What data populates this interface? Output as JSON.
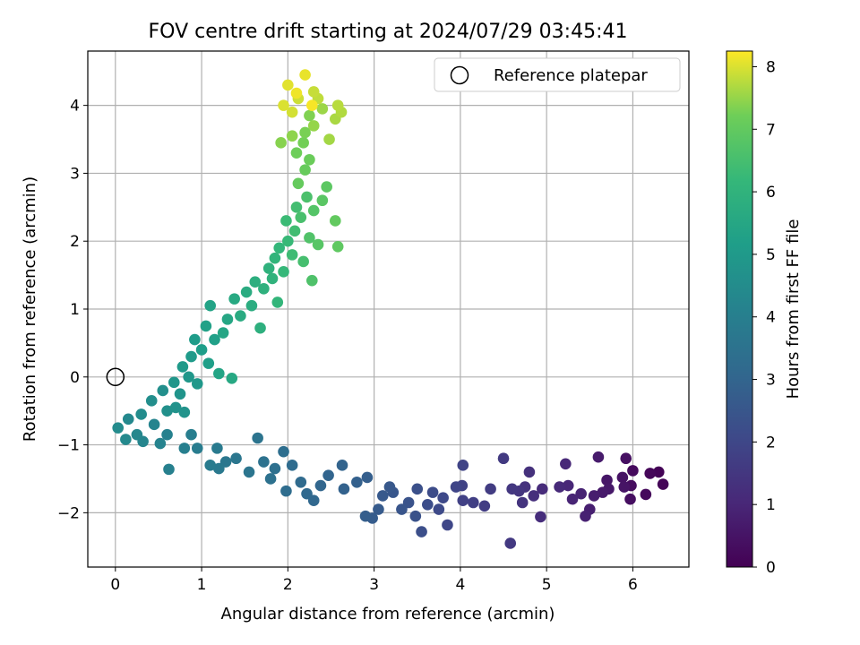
{
  "chart_data": {
    "type": "scatter",
    "title": "FOV centre drift starting at 2024/07/29 03:45:41",
    "xlabel": "Angular distance from reference (arcmin)",
    "ylabel": "Rotation from reference (arcmin)",
    "xlim": [
      -0.32,
      6.65
    ],
    "ylim": [
      -2.8,
      4.8
    ],
    "x_ticks": [
      0,
      1,
      2,
      3,
      4,
      5,
      6
    ],
    "y_ticks": [
      -2,
      -1,
      0,
      1,
      2,
      3,
      4
    ],
    "grid": true,
    "legend": {
      "placement": "top-right",
      "entries": [
        "Reference platepar"
      ]
    },
    "reference_point": {
      "name": "Reference platepar",
      "x": 0,
      "y": 0
    },
    "colorbar": {
      "label": "Hours from first FF file",
      "range": [
        0,
        8.25
      ],
      "ticks": [
        0,
        1,
        2,
        3,
        4,
        5,
        6,
        7,
        8
      ],
      "colormap": "viridis"
    },
    "points": [
      [
        6.3,
        -1.4,
        0.05
      ],
      [
        6.35,
        -1.58,
        0.1
      ],
      [
        6.2,
        -1.42,
        0.15
      ],
      [
        6.15,
        -1.73,
        0.2
      ],
      [
        6.0,
        -1.38,
        0.25
      ],
      [
        5.98,
        -1.6,
        0.3
      ],
      [
        5.97,
        -1.8,
        0.35
      ],
      [
        5.92,
        -1.2,
        0.4
      ],
      [
        5.88,
        -1.48,
        0.45
      ],
      [
        5.9,
        -1.62,
        0.5
      ],
      [
        5.7,
        -1.52,
        0.55
      ],
      [
        5.72,
        -1.65,
        0.6
      ],
      [
        5.65,
        -1.7,
        0.65
      ],
      [
        5.6,
        -1.18,
        0.7
      ],
      [
        5.55,
        -1.75,
        0.75
      ],
      [
        5.5,
        -1.95,
        0.8
      ],
      [
        5.45,
        -2.05,
        0.85
      ],
      [
        5.4,
        -1.72,
        0.9
      ],
      [
        5.3,
        -1.8,
        0.95
      ],
      [
        5.25,
        -1.6,
        1.0
      ],
      [
        5.22,
        -1.28,
        1.05
      ],
      [
        5.15,
        -1.62,
        1.1
      ],
      [
        4.95,
        -1.65,
        1.15
      ],
      [
        4.93,
        -2.06,
        1.2
      ],
      [
        4.85,
        -1.75,
        1.25
      ],
      [
        4.8,
        -1.4,
        1.3
      ],
      [
        4.75,
        -1.62,
        1.35
      ],
      [
        4.72,
        -1.85,
        1.4
      ],
      [
        4.68,
        -1.68,
        1.45
      ],
      [
        4.6,
        -1.65,
        1.5
      ],
      [
        4.58,
        -2.45,
        1.55
      ],
      [
        4.5,
        -1.2,
        1.6
      ],
      [
        4.35,
        -1.65,
        1.65
      ],
      [
        4.28,
        -1.9,
        1.7
      ],
      [
        4.15,
        -1.85,
        1.75
      ],
      [
        4.03,
        -1.82,
        1.8
      ],
      [
        4.02,
        -1.6,
        1.85
      ],
      [
        4.03,
        -1.3,
        1.9
      ],
      [
        3.95,
        -1.62,
        1.95
      ],
      [
        3.85,
        -2.18,
        2.0
      ],
      [
        3.8,
        -1.78,
        2.05
      ],
      [
        3.75,
        -1.95,
        2.1
      ],
      [
        3.68,
        -1.7,
        2.15
      ],
      [
        3.62,
        -1.88,
        2.2
      ],
      [
        3.55,
        -2.28,
        2.25
      ],
      [
        3.5,
        -1.65,
        2.3
      ],
      [
        3.48,
        -2.05,
        2.35
      ],
      [
        3.4,
        -1.85,
        2.4
      ],
      [
        3.32,
        -1.95,
        2.45
      ],
      [
        3.22,
        -1.7,
        2.5
      ],
      [
        3.18,
        -1.62,
        2.55
      ],
      [
        3.1,
        -1.75,
        2.6
      ],
      [
        3.05,
        -1.95,
        2.65
      ],
      [
        2.98,
        -2.08,
        2.7
      ],
      [
        2.9,
        -2.05,
        2.75
      ],
      [
        2.92,
        -1.48,
        2.8
      ],
      [
        2.8,
        -1.55,
        2.85
      ],
      [
        2.65,
        -1.65,
        2.9
      ],
      [
        2.63,
        -1.3,
        2.95
      ],
      [
        2.47,
        -1.45,
        3.0
      ],
      [
        2.38,
        -1.6,
        3.05
      ],
      [
        2.3,
        -1.82,
        3.1
      ],
      [
        2.22,
        -1.72,
        3.15
      ],
      [
        2.15,
        -1.55,
        3.2
      ],
      [
        2.05,
        -1.3,
        3.25
      ],
      [
        1.98,
        -1.68,
        3.3
      ],
      [
        1.95,
        -1.1,
        3.35
      ],
      [
        1.85,
        -1.35,
        3.4
      ],
      [
        1.8,
        -1.5,
        3.45
      ],
      [
        1.72,
        -1.25,
        3.5
      ],
      [
        1.65,
        -0.9,
        3.55
      ],
      [
        1.55,
        -1.4,
        3.6
      ],
      [
        1.4,
        -1.2,
        3.65
      ],
      [
        1.28,
        -1.25,
        3.7
      ],
      [
        1.2,
        -1.35,
        3.75
      ],
      [
        1.18,
        -1.05,
        3.8
      ],
      [
        1.1,
        -1.3,
        3.85
      ],
      [
        0.95,
        -1.05,
        3.9
      ],
      [
        0.88,
        -0.85,
        3.95
      ],
      [
        0.8,
        -1.05,
        4.0
      ],
      [
        0.62,
        -1.36,
        4.05
      ],
      [
        0.6,
        -0.85,
        4.1
      ],
      [
        0.52,
        -0.98,
        4.15
      ],
      [
        0.45,
        -0.7,
        4.2
      ],
      [
        0.32,
        -0.95,
        4.25
      ],
      [
        0.25,
        -0.85,
        4.3
      ],
      [
        0.15,
        -0.62,
        4.35
      ],
      [
        0.12,
        -0.92,
        4.4
      ],
      [
        0.03,
        -0.75,
        4.45
      ],
      [
        0.3,
        -0.55,
        4.5
      ],
      [
        0.42,
        -0.35,
        4.55
      ],
      [
        0.55,
        -0.2,
        4.6
      ],
      [
        0.6,
        -0.5,
        4.65
      ],
      [
        0.7,
        -0.45,
        4.7
      ],
      [
        0.8,
        -0.52,
        4.75
      ],
      [
        0.75,
        -0.25,
        4.8
      ],
      [
        0.68,
        -0.08,
        4.85
      ],
      [
        0.85,
        0.0,
        4.9
      ],
      [
        0.95,
        -0.1,
        4.95
      ],
      [
        0.78,
        0.15,
        5.0
      ],
      [
        0.88,
        0.3,
        5.05
      ],
      [
        0.92,
        0.55,
        5.1
      ],
      [
        1.0,
        0.4,
        5.15
      ],
      [
        1.08,
        0.2,
        5.2
      ],
      [
        1.15,
        0.55,
        5.25
      ],
      [
        1.05,
        0.75,
        5.3
      ],
      [
        1.1,
        1.05,
        5.35
      ],
      [
        1.2,
        0.05,
        5.4
      ],
      [
        1.25,
        0.65,
        5.45
      ],
      [
        1.3,
        0.85,
        5.5
      ],
      [
        1.35,
        -0.02,
        5.55
      ],
      [
        1.38,
        1.15,
        5.6
      ],
      [
        1.45,
        0.9,
        5.65
      ],
      [
        1.52,
        1.25,
        5.7
      ],
      [
        1.58,
        1.05,
        5.75
      ],
      [
        1.62,
        1.4,
        5.8
      ],
      [
        1.68,
        0.72,
        5.85
      ],
      [
        1.72,
        1.3,
        5.9
      ],
      [
        1.78,
        1.6,
        5.95
      ],
      [
        1.82,
        1.45,
        6.0
      ],
      [
        1.85,
        1.75,
        6.05
      ],
      [
        1.88,
        1.1,
        6.1
      ],
      [
        1.9,
        1.9,
        6.15
      ],
      [
        1.95,
        1.55,
        6.2
      ],
      [
        2.0,
        2.0,
        6.25
      ],
      [
        1.98,
        2.3,
        6.3
      ],
      [
        2.05,
        1.8,
        6.35
      ],
      [
        2.08,
        2.15,
        6.4
      ],
      [
        2.1,
        2.5,
        6.45
      ],
      [
        2.18,
        1.7,
        6.5
      ],
      [
        2.15,
        2.35,
        6.55
      ],
      [
        2.22,
        2.65,
        6.6
      ],
      [
        2.28,
        1.42,
        6.65
      ],
      [
        2.25,
        2.05,
        6.7
      ],
      [
        2.3,
        2.45,
        6.75
      ],
      [
        2.35,
        1.95,
        6.8
      ],
      [
        2.4,
        2.6,
        6.85
      ],
      [
        2.45,
        2.8,
        6.9
      ],
      [
        2.58,
        1.92,
        6.95
      ],
      [
        2.55,
        2.3,
        7.0
      ],
      [
        2.12,
        2.85,
        7.05
      ],
      [
        2.2,
        3.05,
        7.1
      ],
      [
        2.25,
        3.2,
        7.15
      ],
      [
        2.1,
        3.3,
        7.2
      ],
      [
        2.18,
        3.45,
        7.25
      ],
      [
        2.2,
        3.6,
        7.3
      ],
      [
        2.25,
        3.85,
        7.35
      ],
      [
        1.92,
        3.45,
        7.4
      ],
      [
        2.05,
        3.55,
        7.45
      ],
      [
        2.3,
        3.7,
        7.5
      ],
      [
        2.4,
        3.95,
        7.55
      ],
      [
        2.48,
        3.5,
        7.6
      ],
      [
        2.55,
        3.8,
        7.65
      ],
      [
        2.62,
        3.9,
        7.7
      ],
      [
        2.58,
        4.0,
        7.75
      ],
      [
        2.35,
        4.1,
        7.8
      ],
      [
        2.3,
        4.2,
        7.85
      ],
      [
        2.12,
        4.1,
        7.9
      ],
      [
        2.05,
        3.9,
        7.95
      ],
      [
        1.95,
        4.0,
        8.0
      ],
      [
        2.0,
        4.3,
        8.05
      ],
      [
        2.2,
        4.45,
        8.1
      ],
      [
        2.1,
        4.18,
        8.15
      ],
      [
        2.28,
        4.0,
        8.2
      ]
    ]
  }
}
